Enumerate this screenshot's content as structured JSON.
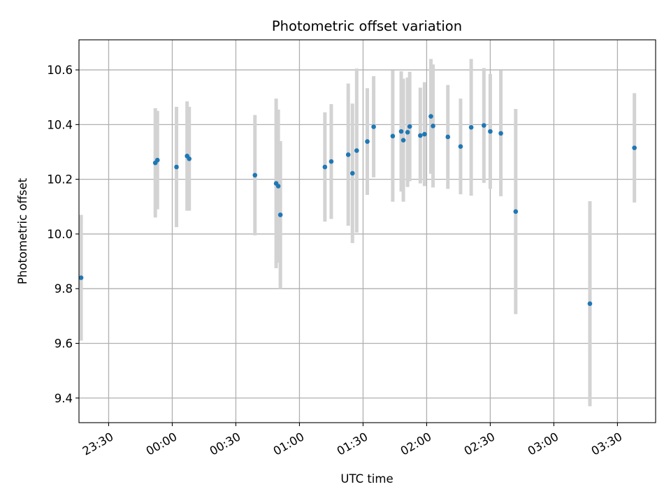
{
  "chart_data": {
    "type": "scatter",
    "title": "Photometric offset variation",
    "xlabel": "UTC time",
    "ylabel": "Photometric offset",
    "x_unit": "UTC HH:MM",
    "xlim": [
      "23:16",
      "03:48"
    ],
    "ylim": [
      9.31,
      10.71
    ],
    "grid": true,
    "x_ticks": [
      "23:30",
      "00:00",
      "00:30",
      "01:00",
      "01:30",
      "02:00",
      "02:30",
      "03:00",
      "03:30"
    ],
    "y_ticks": [
      "9.4",
      "9.6",
      "9.8",
      "10.0",
      "10.2",
      "10.4",
      "10.6"
    ],
    "colors": {
      "points": "#1f77b4",
      "error_bars": "#d3d3d3",
      "grid": "#b0b0b0"
    },
    "points": [
      {
        "time": "23:17",
        "y": 9.84,
        "err": 0.23
      },
      {
        "time": "23:52",
        "y": 10.26,
        "err": 0.2
      },
      {
        "time": "23:53",
        "y": 10.27,
        "err": 0.18
      },
      {
        "time": "00:02",
        "y": 10.245,
        "err": 0.22
      },
      {
        "time": "00:07",
        "y": 10.285,
        "err": 0.2
      },
      {
        "time": "00:08",
        "y": 10.275,
        "err": 0.19
      },
      {
        "time": "00:39",
        "y": 10.215,
        "err": 0.22
      },
      {
        "time": "00:49",
        "y": 10.185,
        "err": 0.31
      },
      {
        "time": "00:50",
        "y": 10.175,
        "err": 0.28
      },
      {
        "time": "00:51",
        "y": 10.07,
        "err": 0.27
      },
      {
        "time": "01:12",
        "y": 10.245,
        "err": 0.2
      },
      {
        "time": "01:15",
        "y": 10.265,
        "err": 0.21
      },
      {
        "time": "01:23",
        "y": 10.29,
        "err": 0.26
      },
      {
        "time": "01:25",
        "y": 10.222,
        "err": 0.255
      },
      {
        "time": "01:27",
        "y": 10.305,
        "err": 0.3
      },
      {
        "time": "01:32",
        "y": 10.338,
        "err": 0.195
      },
      {
        "time": "01:35",
        "y": 10.392,
        "err": 0.185
      },
      {
        "time": "01:44",
        "y": 10.358,
        "err": 0.24
      },
      {
        "time": "01:48",
        "y": 10.375,
        "err": 0.22
      },
      {
        "time": "01:49",
        "y": 10.343,
        "err": 0.225
      },
      {
        "time": "01:51",
        "y": 10.372,
        "err": 0.2
      },
      {
        "time": "01:52",
        "y": 10.393,
        "err": 0.2
      },
      {
        "time": "01:57",
        "y": 10.36,
        "err": 0.175
      },
      {
        "time": "01:59",
        "y": 10.365,
        "err": 0.19
      },
      {
        "time": "02:02",
        "y": 10.43,
        "err": 0.21
      },
      {
        "time": "02:03",
        "y": 10.395,
        "err": 0.225
      },
      {
        "time": "02:10",
        "y": 10.355,
        "err": 0.19
      },
      {
        "time": "02:16",
        "y": 10.32,
        "err": 0.175
      },
      {
        "time": "02:21",
        "y": 10.39,
        "err": 0.25
      },
      {
        "time": "02:27",
        "y": 10.397,
        "err": 0.21
      },
      {
        "time": "02:30",
        "y": 10.375,
        "err": 0.21
      },
      {
        "time": "02:35",
        "y": 10.368,
        "err": 0.23
      },
      {
        "time": "02:42",
        "y": 10.082,
        "err": 0.375
      },
      {
        "time": "03:17",
        "y": 9.745,
        "err": 0.375
      },
      {
        "time": "03:38",
        "y": 10.315,
        "err": 0.2
      }
    ]
  }
}
